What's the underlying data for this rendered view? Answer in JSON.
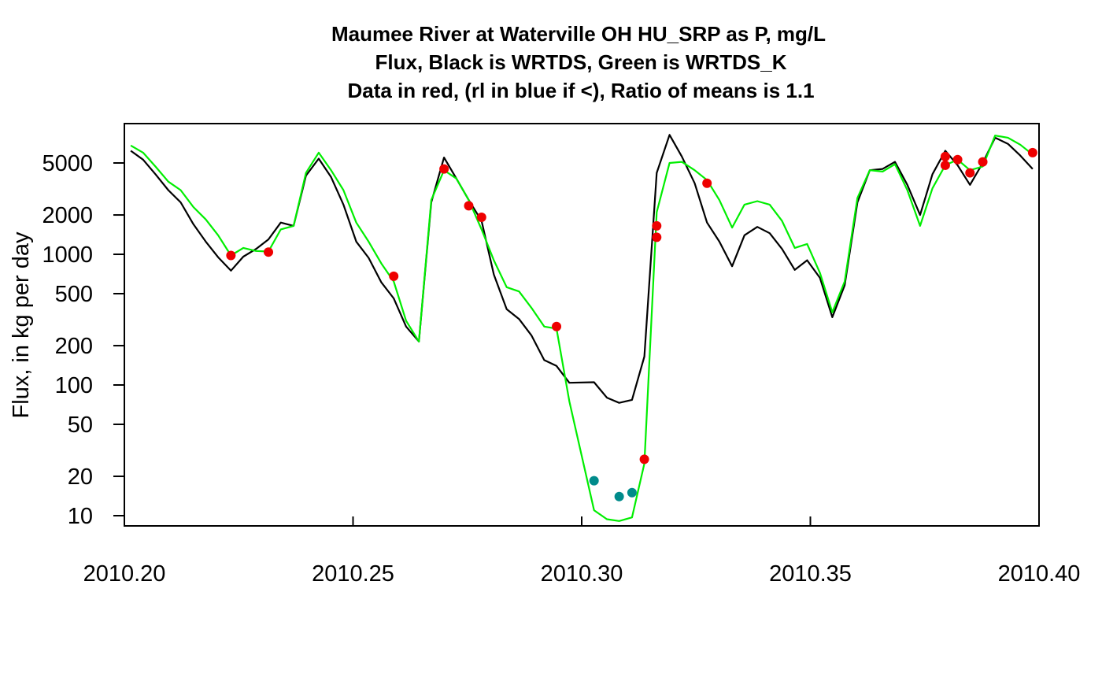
{
  "chart_data": {
    "type": "line",
    "title": [
      "Maumee River at Waterville OH HU_SRP as P, mg/L",
      "Flux, Black is WRTDS, Green is WRTDS_K",
      "Data in red, (rl in blue if <), Ratio of means is 1.1"
    ],
    "xlabel": "",
    "ylabel": "Flux, in kg per day",
    "y_scale": "log",
    "xlim": [
      2010.2,
      2010.4
    ],
    "ylim": [
      8,
      9500
    ],
    "x_ticks": [
      2010.2,
      2010.25,
      2010.3,
      2010.35,
      2010.4
    ],
    "x_tick_labels": [
      "2010.20",
      "2010.25",
      "2010.30",
      "2010.35",
      "2010.40"
    ],
    "y_ticks": [
      10,
      20,
      50,
      100,
      200,
      500,
      1000,
      2000,
      5000
    ],
    "y_tick_labels": [
      "10",
      "20",
      "50",
      "100",
      "200",
      "500",
      "1000",
      "2000",
      "5000"
    ],
    "grid": false,
    "series": [
      {
        "name": "WRTDS",
        "color": "#000000",
        "kind": "line",
        "x": [
          2010.2014,
          2010.2041,
          2010.2068,
          2010.2096,
          2010.2123,
          2010.2151,
          2010.2178,
          2010.2205,
          2010.2233,
          2010.226,
          2010.2288,
          2010.2315,
          2010.2342,
          2010.237,
          2010.2397,
          2010.2425,
          2010.2452,
          2010.2479,
          2010.2507,
          2010.2534,
          2010.2562,
          2010.2589,
          2010.2616,
          2010.2644,
          2010.2671,
          2010.2699,
          2010.2726,
          2010.2753,
          2010.2781,
          2010.2808,
          2010.2836,
          2010.2863,
          2010.289,
          2010.2918,
          2010.2945,
          2010.2973,
          2010.3027,
          2010.3055,
          2010.3082,
          2010.311,
          2010.3137,
          2010.3164,
          2010.3192,
          2010.3219,
          2010.3247,
          2010.3274,
          2010.3301,
          2010.3329,
          2010.3356,
          2010.3384,
          2010.3411,
          2010.3438,
          2010.3466,
          2010.3493,
          2010.3521,
          2010.3548,
          2010.3575,
          2010.3603,
          2010.363,
          2010.3658,
          2010.3685,
          2010.3712,
          2010.374,
          2010.3767,
          2010.3795,
          2010.3822,
          2010.3849,
          2010.3877,
          2010.3904,
          2010.3932,
          2010.3959,
          2010.3986
        ],
        "y": [
          6200,
          5300,
          4100,
          3100,
          2500,
          1700,
          1250,
          950,
          750,
          960,
          1100,
          1300,
          1750,
          1650,
          4000,
          5400,
          3900,
          2400,
          1250,
          940,
          610,
          460,
          280,
          215,
          2500,
          5500,
          3800,
          2600,
          1800,
          700,
          380,
          320,
          240,
          155,
          140,
          104,
          105,
          80,
          73,
          77,
          165,
          4200,
          8200,
          5600,
          3500,
          1750,
          1250,
          810,
          1400,
          1620,
          1450,
          1100,
          760,
          900,
          660,
          330,
          580,
          2500,
          4400,
          4500,
          5100,
          3400,
          2000,
          4100,
          6200,
          4800,
          3400,
          5000,
          7800,
          7000,
          5700,
          4500
        ]
      },
      {
        "name": "WRTDS_K",
        "color": "#00ee00",
        "kind": "line",
        "x": [
          2010.2014,
          2010.2041,
          2010.2068,
          2010.2096,
          2010.2123,
          2010.2151,
          2010.2178,
          2010.2205,
          2010.2233,
          2010.226,
          2010.2288,
          2010.2315,
          2010.2342,
          2010.237,
          2010.2397,
          2010.2425,
          2010.2452,
          2010.2479,
          2010.2507,
          2010.2534,
          2010.2562,
          2010.2589,
          2010.2616,
          2010.2644,
          2010.2671,
          2010.2699,
          2010.2726,
          2010.2753,
          2010.2781,
          2010.2808,
          2010.2836,
          2010.2863,
          2010.289,
          2010.2918,
          2010.2945,
          2010.2973,
          2010.3027,
          2010.3055,
          2010.3082,
          2010.311,
          2010.3137,
          2010.3164,
          2010.3192,
          2010.3219,
          2010.3247,
          2010.3274,
          2010.3301,
          2010.3329,
          2010.3356,
          2010.3384,
          2010.3411,
          2010.3438,
          2010.3466,
          2010.3493,
          2010.3521,
          2010.3548,
          2010.3575,
          2010.3603,
          2010.363,
          2010.3658,
          2010.3685,
          2010.3712,
          2010.374,
          2010.3767,
          2010.3795,
          2010.3822,
          2010.3849,
          2010.3877,
          2010.3904,
          2010.3932,
          2010.3959,
          2010.3986
        ],
        "y": [
          6800,
          6000,
          4700,
          3600,
          3100,
          2300,
          1850,
          1400,
          980,
          1120,
          1060,
          1050,
          1550,
          1650,
          4200,
          6000,
          4400,
          3100,
          1750,
          1250,
          850,
          620,
          310,
          215,
          2600,
          4400,
          3800,
          2600,
          1550,
          900,
          560,
          520,
          390,
          280,
          270,
          75,
          11,
          9.4,
          9.1,
          9.7,
          25,
          2100,
          5000,
          5100,
          4400,
          3700,
          2600,
          1600,
          2400,
          2550,
          2400,
          1800,
          1120,
          1200,
          720,
          360,
          620,
          2700,
          4400,
          4300,
          4900,
          3100,
          1650,
          3200,
          4800,
          5300,
          4400,
          4700,
          8100,
          7800,
          6900,
          5800
        ]
      },
      {
        "name": "Data",
        "color": "#ee0000",
        "kind": "points",
        "x": [
          2010.2233,
          2010.2315,
          2010.2589,
          2010.2699,
          2010.2753,
          2010.2781,
          2010.2945,
          2010.3137,
          2010.3164,
          2010.3164,
          2010.3274,
          2010.3795,
          2010.3795,
          2010.3822,
          2010.3849,
          2010.3877,
          2010.3986
        ],
        "y": [
          980,
          1040,
          680,
          4500,
          2350,
          1920,
          280,
          27,
          1650,
          1350,
          3500,
          5600,
          4800,
          5300,
          4200,
          5100,
          6000
        ]
      },
      {
        "name": "rl",
        "color": "#008b8b",
        "kind": "points",
        "x": [
          2010.3027,
          2010.3082,
          2010.311
        ],
        "y": [
          18.5,
          14,
          15
        ]
      }
    ]
  }
}
